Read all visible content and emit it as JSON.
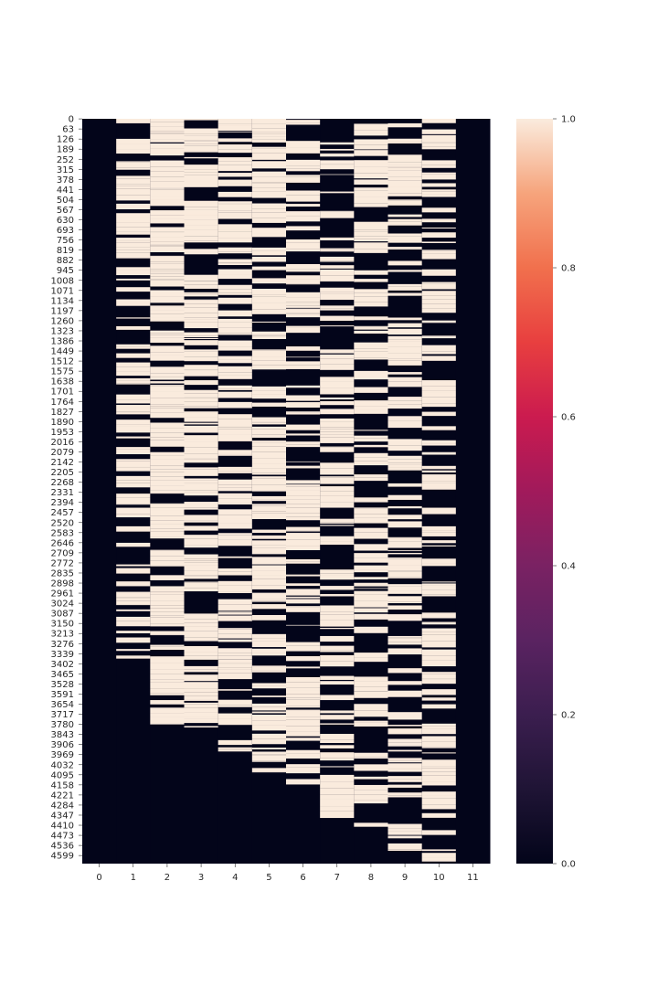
{
  "chart_data": {
    "type": "heatmap",
    "title": "",
    "xlabel": "",
    "ylabel": "",
    "x_categories": [
      "0",
      "1",
      "2",
      "3",
      "4",
      "5",
      "6",
      "7",
      "8",
      "9",
      "10",
      "11"
    ],
    "y_tick_labels": [
      "0",
      "63",
      "126",
      "189",
      "252",
      "315",
      "378",
      "441",
      "504",
      "567",
      "630",
      "693",
      "756",
      "819",
      "882",
      "945",
      "1008",
      "1071",
      "1134",
      "1197",
      "1260",
      "1323",
      "1386",
      "1449",
      "1512",
      "1575",
      "1638",
      "1701",
      "1764",
      "1827",
      "1890",
      "1953",
      "2016",
      "2079",
      "2142",
      "2205",
      "2268",
      "2331",
      "2394",
      "2457",
      "2520",
      "2583",
      "2646",
      "2709",
      "2772",
      "2835",
      "2898",
      "2961",
      "3024",
      "3087",
      "3150",
      "3213",
      "3276",
      "3339",
      "3402",
      "3465",
      "3528",
      "3591",
      "3654",
      "3717",
      "3780",
      "3843",
      "3906",
      "3969",
      "4032",
      "4095",
      "4158",
      "4221",
      "4284",
      "4347",
      "4410",
      "4473",
      "4536",
      "4599"
    ],
    "row_count": 4650,
    "value_range": [
      0,
      1
    ],
    "colorbar": {
      "ticks": [
        "0.0",
        "0.2",
        "0.4",
        "0.6",
        "0.8",
        "1.0"
      ],
      "tick_values": [
        0,
        0.2,
        0.4,
        0.6,
        0.8,
        1.0
      ],
      "colormap": "rocket",
      "low_color": "#03051a",
      "high_color": "#faebdd"
    },
    "columns": [
      {
        "name": "0",
        "active_rows": [
          0,
          0
        ],
        "fill_rate": 0.0
      },
      {
        "name": "1",
        "active_rows": [
          0,
          3400
        ],
        "fill_rate": 0.55
      },
      {
        "name": "2",
        "active_rows": [
          0,
          3780
        ],
        "fill_rate": 0.8
      },
      {
        "name": "3",
        "active_rows": [
          0,
          3800
        ],
        "fill_rate": 0.7
      },
      {
        "name": "4",
        "active_rows": [
          0,
          3950
        ],
        "fill_rate": 0.6
      },
      {
        "name": "5",
        "active_rows": [
          0,
          4080
        ],
        "fill_rate": 0.65
      },
      {
        "name": "6",
        "active_rows": [
          0,
          4180
        ],
        "fill_rate": 0.55
      },
      {
        "name": "7",
        "active_rows": [
          0,
          4420
        ],
        "fill_rate": 0.55
      },
      {
        "name": "8",
        "active_rows": [
          0,
          4420
        ],
        "fill_rate": 0.55
      },
      {
        "name": "9",
        "active_rows": [
          0,
          4600
        ],
        "fill_rate": 0.5
      },
      {
        "name": "10",
        "active_rows": [
          0,
          4650
        ],
        "fill_rate": 0.55
      },
      {
        "name": "11",
        "active_rows": [
          4600,
          4650
        ],
        "fill_rate": 0.12
      }
    ],
    "grid": false,
    "legend": "colorbar-right"
  }
}
